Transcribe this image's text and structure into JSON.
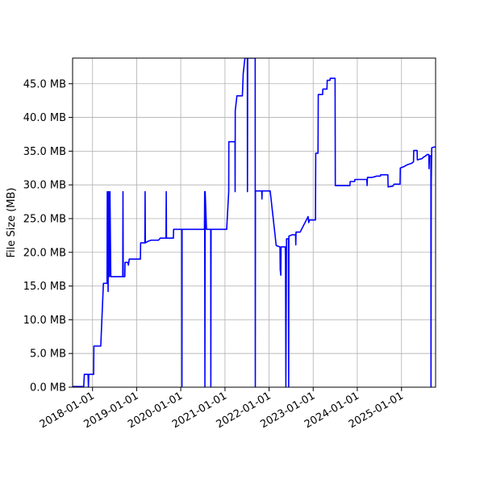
{
  "chart_data": {
    "type": "line",
    "title": "",
    "xlabel": "",
    "ylabel": "File Size (MB)",
    "grid": true,
    "xlim": [
      "2017-07-20",
      "2025-10-10"
    ],
    "ylim": [
      0,
      48.8
    ],
    "x_ticks": [
      "2018-01-01",
      "2019-01-01",
      "2020-01-01",
      "2021-01-01",
      "2022-01-01",
      "2023-01-01",
      "2024-01-01",
      "2025-01-01"
    ],
    "y_ticks": [
      {
        "value": 0,
        "label": "0.0 MB"
      },
      {
        "value": 5,
        "label": "5.0 MB"
      },
      {
        "value": 10,
        "label": "10.0 MB"
      },
      {
        "value": 15,
        "label": "15.0 MB"
      },
      {
        "value": 20,
        "label": "20.0 MB"
      },
      {
        "value": 25,
        "label": "25.0 MB"
      },
      {
        "value": 30,
        "label": "30.0 MB"
      },
      {
        "value": 35,
        "label": "35.0 MB"
      },
      {
        "value": 40,
        "label": "40.0 MB"
      },
      {
        "value": 45,
        "label": "45.0 MB"
      }
    ],
    "series": [
      {
        "color": "#0000ff",
        "points": [
          [
            "2017-07-20",
            0.1
          ],
          [
            "2017-10-20",
            0.1
          ],
          [
            "2017-10-25",
            1.9
          ],
          [
            "2017-11-25",
            1.9
          ],
          [
            "2017-11-28",
            0
          ],
          [
            "2017-12-01",
            1.9
          ],
          [
            "2018-01-10",
            1.9
          ],
          [
            "2018-01-12",
            6.1
          ],
          [
            "2018-03-10",
            6.1
          ],
          [
            "2018-04-01",
            15.4
          ],
          [
            "2018-05-01",
            15.4
          ],
          [
            "2018-05-03",
            29
          ],
          [
            "2018-05-10",
            14.2
          ],
          [
            "2018-05-14",
            29
          ],
          [
            "2018-05-20",
            16.4
          ],
          [
            "2018-05-25",
            29
          ],
          [
            "2018-06-01",
            16.4
          ],
          [
            "2018-09-08",
            16.4
          ],
          [
            "2018-09-10",
            29
          ],
          [
            "2018-09-12",
            16.4
          ],
          [
            "2018-09-25",
            16.4
          ],
          [
            "2018-09-27",
            18.5
          ],
          [
            "2018-10-20",
            18.5
          ],
          [
            "2018-10-25",
            18.1
          ],
          [
            "2018-11-01",
            19
          ],
          [
            "2019-02-01",
            19
          ],
          [
            "2019-02-03",
            21.4
          ],
          [
            "2019-03-10",
            21.4
          ],
          [
            "2019-03-12",
            29
          ],
          [
            "2019-03-14",
            21.4
          ],
          [
            "2019-04-01",
            21.6
          ],
          [
            "2019-05-01",
            21.8
          ],
          [
            "2019-07-01",
            21.8
          ],
          [
            "2019-07-15",
            22.1
          ],
          [
            "2019-09-01",
            22.1
          ],
          [
            "2019-09-03",
            29
          ],
          [
            "2019-09-05",
            22.1
          ],
          [
            "2019-11-01",
            22.1
          ],
          [
            "2019-11-03",
            23.4
          ],
          [
            "2020-01-10",
            23.4
          ],
          [
            "2020-01-11",
            0
          ],
          [
            "2020-01-12",
            23.4
          ],
          [
            "2020-07-15",
            23.4
          ],
          [
            "2020-07-17",
            29
          ],
          [
            "2020-07-19",
            0
          ],
          [
            "2020-07-21",
            29
          ],
          [
            "2020-08-01",
            23.4
          ],
          [
            "2020-09-05",
            23.4
          ],
          [
            "2020-09-06",
            0
          ],
          [
            "2020-09-08",
            23.4
          ],
          [
            "2021-01-15",
            23.4
          ],
          [
            "2021-02-01",
            29
          ],
          [
            "2021-02-02",
            36.4
          ],
          [
            "2021-03-25",
            36.4
          ],
          [
            "2021-03-26",
            29
          ],
          [
            "2021-03-27",
            41
          ],
          [
            "2021-04-10",
            43.2
          ],
          [
            "2021-05-25",
            43.2
          ],
          [
            "2021-06-01",
            46.5
          ],
          [
            "2021-06-15",
            48.8
          ],
          [
            "2021-07-05",
            48.8
          ],
          [
            "2021-07-06",
            29
          ],
          [
            "2021-07-08",
            48.8
          ],
          [
            "2021-09-08",
            48.8
          ],
          [
            "2021-09-09",
            0
          ],
          [
            "2021-09-10",
            29.1
          ],
          [
            "2021-11-01",
            29.1
          ],
          [
            "2021-11-03",
            27.9
          ],
          [
            "2021-11-05",
            29.1
          ],
          [
            "2022-01-10",
            29.1
          ],
          [
            "2022-03-01",
            21
          ],
          [
            "2022-04-01",
            20.8
          ],
          [
            "2022-04-03",
            17.4
          ],
          [
            "2022-04-08",
            16.6
          ],
          [
            "2022-04-10",
            20.8
          ],
          [
            "2022-05-15",
            20.8
          ],
          [
            "2022-05-17",
            18.4
          ],
          [
            "2022-05-20",
            0
          ],
          [
            "2022-05-25",
            22
          ],
          [
            "2022-06-10",
            22
          ],
          [
            "2022-06-12",
            0
          ],
          [
            "2022-06-14",
            22.4
          ],
          [
            "2022-07-10",
            22.6
          ],
          [
            "2022-08-08",
            22.6
          ],
          [
            "2022-08-10",
            21.1
          ],
          [
            "2022-08-12",
            23
          ],
          [
            "2022-09-15",
            23
          ],
          [
            "2022-11-20",
            25.3
          ],
          [
            "2022-11-25",
            24.4
          ],
          [
            "2022-12-01",
            24.8
          ],
          [
            "2023-01-20",
            24.8
          ],
          [
            "2023-01-22",
            34.7
          ],
          [
            "2023-02-10",
            34.7
          ],
          [
            "2023-02-12",
            43.4
          ],
          [
            "2023-03-20",
            43.4
          ],
          [
            "2023-03-22",
            44.2
          ],
          [
            "2023-04-25",
            44.2
          ],
          [
            "2023-04-27",
            45.5
          ],
          [
            "2023-05-20",
            45.5
          ],
          [
            "2023-05-22",
            45.8
          ],
          [
            "2023-07-01",
            45.8
          ],
          [
            "2023-07-03",
            29.9
          ],
          [
            "2023-11-01",
            29.9
          ],
          [
            "2023-11-03",
            30.5
          ],
          [
            "2023-12-10",
            30.5
          ],
          [
            "2023-12-12",
            30.8
          ],
          [
            "2024-03-20",
            30.8
          ],
          [
            "2024-03-22",
            29.9
          ],
          [
            "2024-03-25",
            31.1
          ],
          [
            "2024-05-01",
            31.1
          ],
          [
            "2024-06-10",
            31.3
          ],
          [
            "2024-07-10",
            31.3
          ],
          [
            "2024-07-12",
            31.5
          ],
          [
            "2024-09-10",
            31.5
          ],
          [
            "2024-09-12",
            29.7
          ],
          [
            "2024-10-20",
            29.8
          ],
          [
            "2024-11-01",
            30.1
          ],
          [
            "2024-12-20",
            30.1
          ],
          [
            "2024-12-22",
            32.5
          ],
          [
            "2025-01-20",
            32.7
          ],
          [
            "2025-02-20",
            33
          ],
          [
            "2025-03-25",
            33.2
          ],
          [
            "2025-04-10",
            33.4
          ],
          [
            "2025-04-12",
            35.1
          ],
          [
            "2025-05-10",
            35.1
          ],
          [
            "2025-05-12",
            33.7
          ],
          [
            "2025-06-20",
            33.9
          ],
          [
            "2025-07-01",
            34.1
          ],
          [
            "2025-07-20",
            34.3
          ],
          [
            "2025-08-01",
            34.5
          ],
          [
            "2025-08-15",
            34.5
          ],
          [
            "2025-08-17",
            32.4
          ],
          [
            "2025-08-20",
            34.3
          ],
          [
            "2025-09-01",
            34.3
          ],
          [
            "2025-09-02",
            0
          ],
          [
            "2025-09-04",
            30.2
          ],
          [
            "2025-09-08",
            35.5
          ],
          [
            "2025-09-25",
            35.6
          ],
          [
            "2025-10-10",
            35.6
          ]
        ]
      }
    ]
  }
}
